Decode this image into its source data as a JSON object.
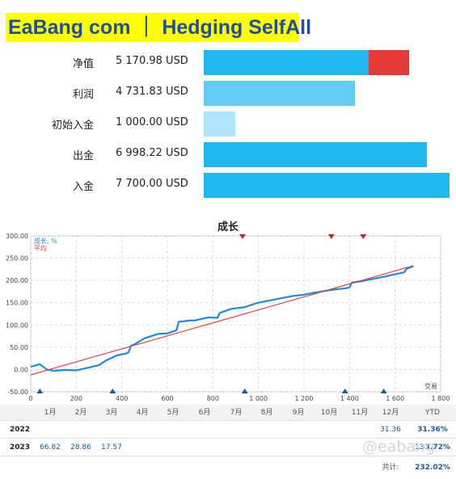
{
  "header": {
    "title": "EaBang com ｜ Hedging SelfAll"
  },
  "summary": [
    {
      "label": "净值",
      "value": "5 170.98 USD",
      "color": "#1fb5ee",
      "extra_color": "#e53935"
    },
    {
      "label": "利润",
      "value": "4 731.83 USD",
      "color": "#63ccf5"
    },
    {
      "label": "初始入金",
      "value": "1 000.00 USD",
      "color": "#aee5fb"
    },
    {
      "label": "出金",
      "value": "6 998.22 USD",
      "color": "#1fb5ee"
    },
    {
      "label": "入金",
      "value": "7 700.00 USD",
      "color": "#1fb5ee"
    }
  ],
  "chart_data": {
    "type": "line",
    "title": "成长",
    "xlabel": "交易",
    "ylabel": "",
    "xlim": [
      0,
      1800
    ],
    "ylim": [
      -50,
      300
    ],
    "x_ticks": [
      "0",
      "200",
      "400",
      "600",
      "800",
      "1 000",
      "1 200",
      "1 400",
      "1 600",
      "1 800"
    ],
    "y_ticks": [
      "300.00",
      "250.00",
      "200.00",
      "150.00",
      "100.00",
      "50.00",
      "0.00",
      "-50.00"
    ],
    "grid": true,
    "legend_position": "top-left",
    "legend": [
      "成长, %",
      "平均"
    ],
    "series": [
      {
        "name": "成长, %",
        "color": "#1e88e5",
        "x": [
          0,
          40,
          70,
          100,
          150,
          200,
          260,
          300,
          330,
          380,
          420,
          430,
          440,
          460,
          500,
          560,
          600,
          640,
          650,
          700,
          720,
          780,
          820,
          830,
          880,
          940,
          980,
          1000,
          1080,
          1150,
          1200,
          1240,
          1300,
          1340,
          1380,
          1400,
          1410,
          1450,
          1480,
          1550,
          1600,
          1640,
          1650,
          1680
        ],
        "values": [
          6,
          12,
          0,
          -3,
          -1,
          -2,
          5,
          10,
          20,
          32,
          36,
          39,
          53,
          58,
          70,
          80,
          81,
          88,
          107,
          110,
          110,
          117,
          116,
          127,
          136,
          140,
          147,
          150,
          158,
          165,
          168,
          172,
          177,
          180,
          182,
          184,
          195,
          198,
          201,
          208,
          214,
          218,
          226,
          232
        ]
      },
      {
        "name": "平均",
        "color": "#e53935",
        "x": [
          0,
          1680
        ],
        "values": [
          -12,
          233
        ]
      }
    ],
    "markers": {
      "top_red_x": [
        930,
        1320,
        1460
      ],
      "bottom_blue_x": [
        40,
        360,
        940,
        1380,
        1550
      ]
    }
  },
  "months_table": {
    "months": [
      "1月",
      "2月",
      "3月",
      "4月",
      "5月",
      "6月",
      "7月",
      "8月",
      "9月",
      "10月",
      "11月",
      "12月"
    ],
    "ytd_label": "YTD",
    "years": [
      {
        "year": "2022",
        "values": [
          "",
          "",
          "",
          "",
          "",
          "",
          "",
          "",
          "",
          "",
          "",
          "31.36"
        ],
        "ytd": "31.36%"
      },
      {
        "year": "2023",
        "values": [
          "66.82",
          "28.86",
          "17.57",
          "",
          "",
          "",
          "",
          "",
          "",
          "",
          "",
          ""
        ],
        "ytd": "133.72%"
      }
    ],
    "total_label": "共计:",
    "total_value": "232.02%"
  },
  "watermark": "@eabang"
}
